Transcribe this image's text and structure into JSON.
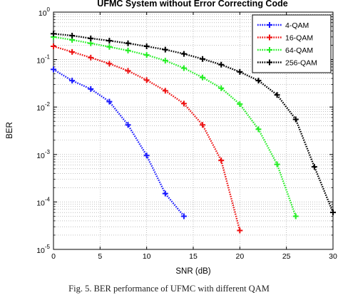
{
  "caption": "Fig. 5.   BER performance of UFMC with different QAM",
  "colors": {
    "axis": "#000000",
    "grid": "#9a9a9a",
    "background": "#ffffff"
  },
  "chart_data": {
    "type": "line",
    "title": "UFMC System without Error Correcting Code",
    "xlabel": "SNR (dB)",
    "ylabel": "BER",
    "xlim": [
      0,
      30
    ],
    "ylim": [
      1e-05,
      1
    ],
    "yscale": "log",
    "grid": true,
    "grid_style": "dotted",
    "legend_position": "top-right",
    "x_ticks": [
      0,
      5,
      10,
      15,
      20,
      25,
      30
    ],
    "x_tick_labels": [
      "0",
      "5",
      "10",
      "15",
      "20",
      "25",
      "30"
    ],
    "y_ticks": [
      1e-05,
      0.0001,
      0.001,
      0.01,
      0.1,
      1
    ],
    "y_tick_labels": [
      {
        "base": "10",
        "exp": "-5"
      },
      {
        "base": "10",
        "exp": "-4"
      },
      {
        "base": "10",
        "exp": "-3"
      },
      {
        "base": "10",
        "exp": "-2"
      },
      {
        "base": "10",
        "exp": "-1"
      },
      {
        "base": "10",
        "exp": "0"
      }
    ],
    "series": [
      {
        "name": "4-QAM",
        "color": "#1a1aff",
        "x": [
          0,
          2,
          4,
          6,
          8,
          10,
          12,
          14
        ],
        "y": [
          0.062,
          0.036,
          0.024,
          0.013,
          0.0042,
          0.00095,
          0.00015,
          5e-05
        ]
      },
      {
        "name": "16-QAM",
        "color": "#ee1111",
        "x": [
          0,
          2,
          4,
          6,
          8,
          10,
          12,
          14,
          16,
          18,
          20
        ],
        "y": [
          0.19,
          0.145,
          0.11,
          0.082,
          0.058,
          0.037,
          0.022,
          0.0118,
          0.0042,
          0.00075,
          2.5e-05
        ]
      },
      {
        "name": "64-QAM",
        "color": "#22ee22",
        "x": [
          0,
          2,
          4,
          6,
          8,
          10,
          12,
          14,
          16,
          18,
          20,
          22,
          24,
          26
        ],
        "y": [
          0.3,
          0.26,
          0.22,
          0.185,
          0.155,
          0.125,
          0.095,
          0.066,
          0.042,
          0.025,
          0.0115,
          0.0034,
          0.00062,
          5e-05
        ]
      },
      {
        "name": "256-QAM",
        "color": "#000000",
        "x": [
          0,
          2,
          4,
          6,
          8,
          10,
          12,
          14,
          16,
          18,
          20,
          22,
          24,
          26,
          28,
          30
        ],
        "y": [
          0.35,
          0.32,
          0.28,
          0.25,
          0.22,
          0.19,
          0.162,
          0.132,
          0.103,
          0.078,
          0.055,
          0.036,
          0.018,
          0.0055,
          0.00055,
          6e-05
        ]
      }
    ]
  }
}
